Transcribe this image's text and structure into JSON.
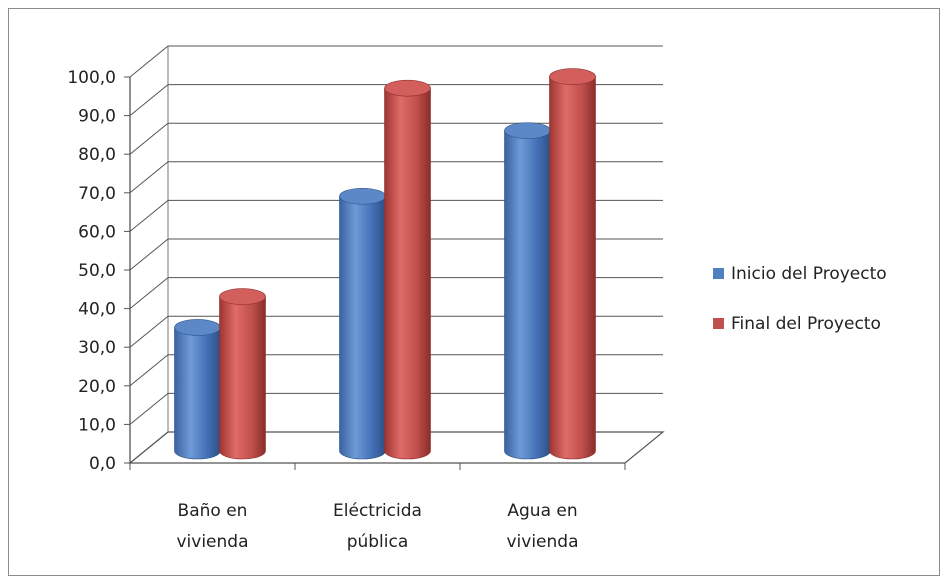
{
  "chart_data": {
    "type": "bar",
    "style": "3d-cylinder",
    "categories": [
      [
        "Baño en",
        "vivienda"
      ],
      [
        "Eléctricida",
        "pública"
      ],
      [
        "Agua en",
        "vivienda"
      ]
    ],
    "series": [
      {
        "name": "Inicio del Proyecto",
        "color": "#4f81bd",
        "values": [
          32,
          66,
          83
        ]
      },
      {
        "name": "Final del Proyecto",
        "color": "#c0504d",
        "values": [
          40,
          94,
          97
        ]
      }
    ],
    "yticks": [
      "0,0",
      "10,0",
      "20,0",
      "30,0",
      "40,0",
      "50,0",
      "60,0",
      "70,0",
      "80,0",
      "90,0",
      "100,0"
    ],
    "ylim": [
      0,
      100
    ],
    "grid": true,
    "legend": "right"
  }
}
